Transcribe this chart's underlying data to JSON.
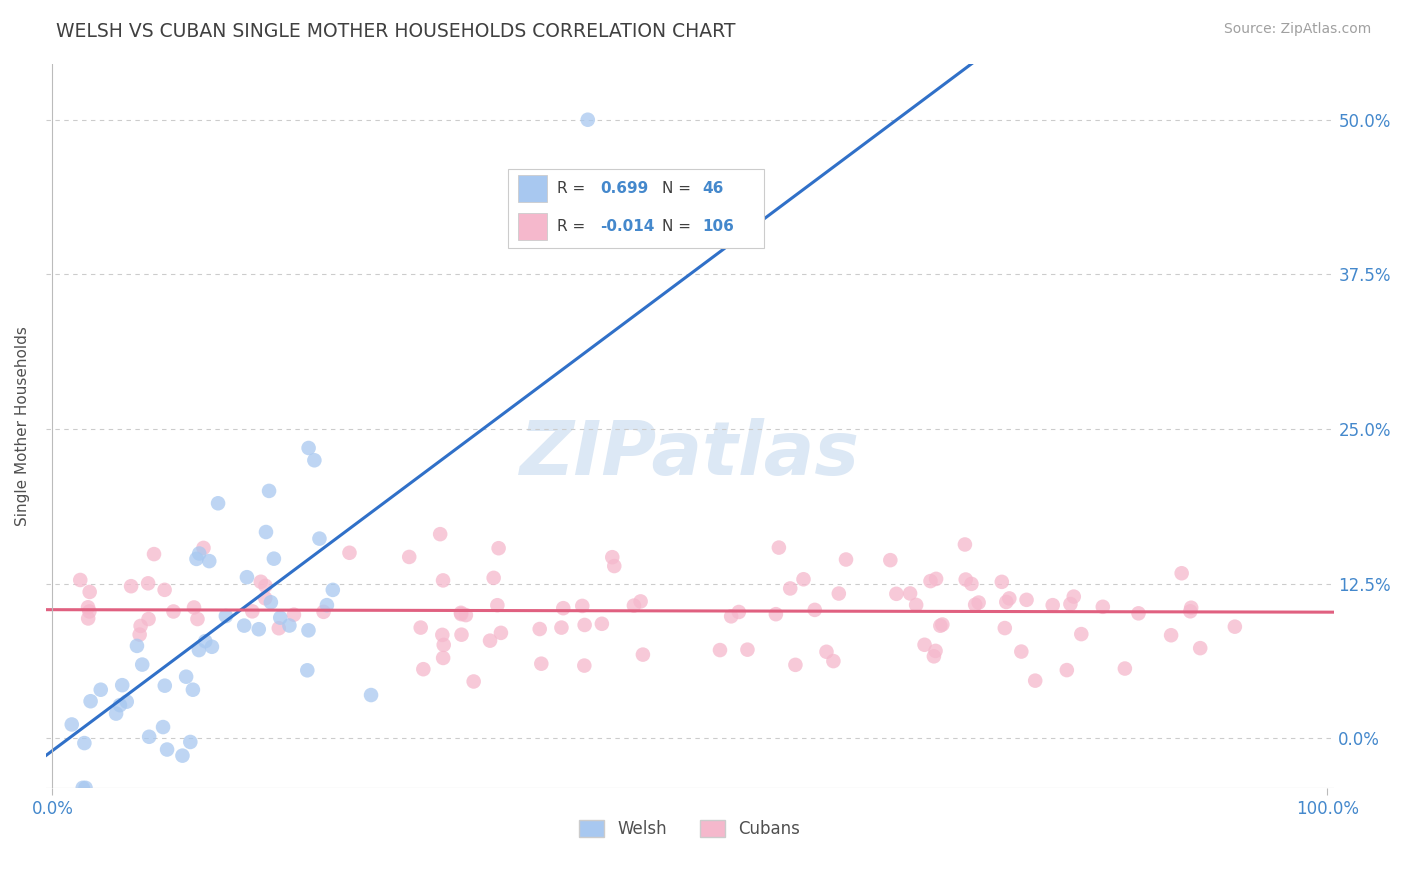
{
  "title": "WELSH VS CUBAN SINGLE MOTHER HOUSEHOLDS CORRELATION CHART",
  "source_text": "Source: ZipAtlas.com",
  "ylabel": "Single Mother Households",
  "xlim": [
    0.0,
    1.0
  ],
  "ylim": [
    -0.04,
    0.545
  ],
  "xtick_positions": [
    0.0,
    1.0
  ],
  "xtick_labels": [
    "0.0%",
    "100.0%"
  ],
  "ytick_values": [
    0.0,
    0.125,
    0.25,
    0.375,
    0.5
  ],
  "ytick_labels": [
    "0.0%",
    "12.5%",
    "25.0%",
    "37.5%",
    "50.0%"
  ],
  "welsh_R": 0.699,
  "welsh_N": 46,
  "cuban_R": -0.014,
  "cuban_N": 106,
  "welsh_color": "#a8c8f0",
  "cuban_color": "#f5b8cc",
  "welsh_line_color": "#3070c8",
  "cuban_line_color": "#e06080",
  "title_color": "#404040",
  "axis_label_color": "#505050",
  "tick_label_color": "#4488cc",
  "source_color": "#a0a0a0",
  "grid_color": "#cccccc",
  "watermark_color": "#dce8f5",
  "legend_border_color": "#cccccc",
  "legend_bg_color": "#ffffff",
  "welsh_line_slope": 0.77,
  "welsh_line_intercept": -0.01,
  "cuban_line_slope": -0.002,
  "cuban_line_intercept": 0.104
}
